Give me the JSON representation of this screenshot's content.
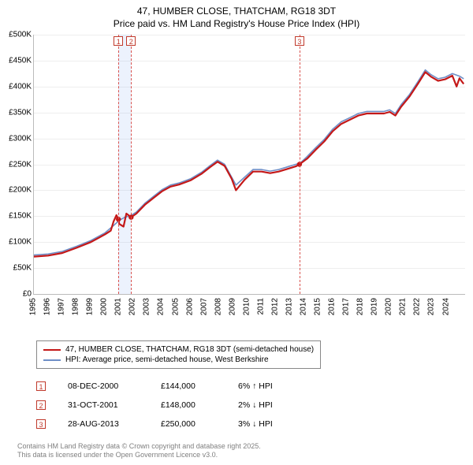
{
  "title": {
    "line1": "47, HUMBER CLOSE, THATCHAM, RG18 3DT",
    "line2": "Price paid vs. HM Land Registry's House Price Index (HPI)"
  },
  "chart": {
    "type": "line",
    "background_color": "#ffffff",
    "grid_color": "#eeeeee",
    "axis_color": "#bbbbbb",
    "font_size_ticks": 10,
    "x": {
      "min": 1995.0,
      "max": 2025.3,
      "ticks": [
        1995,
        1996,
        1997,
        1998,
        1999,
        2000,
        2001,
        2002,
        2003,
        2004,
        2005,
        2006,
        2007,
        2008,
        2009,
        2010,
        2011,
        2012,
        2013,
        2014,
        2015,
        2016,
        2017,
        2018,
        2019,
        2020,
        2021,
        2022,
        2023,
        2024
      ]
    },
    "y": {
      "min": 0,
      "max": 500000,
      "ticks": [
        0,
        50000,
        100000,
        150000,
        200000,
        250000,
        300000,
        350000,
        400000,
        450000,
        500000
      ],
      "tick_labels": [
        "£0",
        "£50K",
        "£100K",
        "£150K",
        "£200K",
        "£250K",
        "£300K",
        "£350K",
        "£400K",
        "£450K",
        "£500K"
      ]
    },
    "series": [
      {
        "name": "hpi",
        "label": "HPI: Average price, semi-detached house, West Berkshire",
        "color": "#6f8fc7",
        "width": 1.6,
        "points": [
          [
            1995.0,
            75000
          ],
          [
            1996.0,
            77000
          ],
          [
            1997.0,
            82000
          ],
          [
            1998.0,
            92000
          ],
          [
            1999.0,
            103000
          ],
          [
            2000.0,
            118000
          ],
          [
            2000.6,
            132000
          ],
          [
            2001.0,
            142000
          ],
          [
            2001.4,
            148000
          ],
          [
            2001.8,
            151000
          ],
          [
            2002.2,
            158000
          ],
          [
            2002.8,
            175000
          ],
          [
            2003.4,
            188000
          ],
          [
            2004.0,
            201000
          ],
          [
            2004.6,
            210000
          ],
          [
            2005.2,
            214000
          ],
          [
            2006.0,
            222000
          ],
          [
            2006.8,
            235000
          ],
          [
            2007.4,
            248000
          ],
          [
            2007.9,
            258000
          ],
          [
            2008.4,
            250000
          ],
          [
            2008.9,
            225000
          ],
          [
            2009.2,
            210000
          ],
          [
            2009.8,
            225000
          ],
          [
            2010.4,
            240000
          ],
          [
            2011.0,
            240000
          ],
          [
            2011.6,
            237000
          ],
          [
            2012.2,
            240000
          ],
          [
            2012.8,
            245000
          ],
          [
            2013.4,
            250000
          ],
          [
            2013.7,
            252000
          ],
          [
            2014.2,
            265000
          ],
          [
            2014.8,
            282000
          ],
          [
            2015.4,
            298000
          ],
          [
            2016.0,
            318000
          ],
          [
            2016.6,
            332000
          ],
          [
            2017.2,
            340000
          ],
          [
            2017.8,
            348000
          ],
          [
            2018.4,
            352000
          ],
          [
            2019.0,
            352000
          ],
          [
            2019.6,
            352000
          ],
          [
            2020.0,
            355000
          ],
          [
            2020.4,
            348000
          ],
          [
            2020.8,
            365000
          ],
          [
            2021.4,
            385000
          ],
          [
            2022.0,
            410000
          ],
          [
            2022.5,
            432000
          ],
          [
            2022.9,
            423000
          ],
          [
            2023.4,
            415000
          ],
          [
            2023.9,
            418000
          ],
          [
            2024.4,
            425000
          ],
          [
            2024.9,
            420000
          ],
          [
            2025.2,
            415000
          ]
        ]
      },
      {
        "name": "subject",
        "label": "47, HUMBER CLOSE, THATCHAM, RG18 3DT (semi-detached house)",
        "color": "#c41818",
        "width": 2.2,
        "points": [
          [
            1995.0,
            72000
          ],
          [
            1996.0,
            74000
          ],
          [
            1997.0,
            79000
          ],
          [
            1998.0,
            89000
          ],
          [
            1999.0,
            100000
          ],
          [
            2000.0,
            115000
          ],
          [
            2000.4,
            122000
          ],
          [
            2000.6,
            140000
          ],
          [
            2000.8,
            152000
          ],
          [
            2000.94,
            144000
          ],
          [
            2001.0,
            135000
          ],
          [
            2001.3,
            130000
          ],
          [
            2001.5,
            155000
          ],
          [
            2001.83,
            148000
          ],
          [
            2002.2,
            155000
          ],
          [
            2002.8,
            172000
          ],
          [
            2003.4,
            185000
          ],
          [
            2004.0,
            198000
          ],
          [
            2004.6,
            207000
          ],
          [
            2005.2,
            211000
          ],
          [
            2006.0,
            219000
          ],
          [
            2006.8,
            232000
          ],
          [
            2007.4,
            245000
          ],
          [
            2007.9,
            255000
          ],
          [
            2008.4,
            247000
          ],
          [
            2008.9,
            222000
          ],
          [
            2009.2,
            200000
          ],
          [
            2009.8,
            220000
          ],
          [
            2010.4,
            236000
          ],
          [
            2011.0,
            236000
          ],
          [
            2011.6,
            233000
          ],
          [
            2012.2,
            236000
          ],
          [
            2012.8,
            241000
          ],
          [
            2013.4,
            246000
          ],
          [
            2013.66,
            250000
          ],
          [
            2014.2,
            261000
          ],
          [
            2014.8,
            278000
          ],
          [
            2015.4,
            294000
          ],
          [
            2016.0,
            314000
          ],
          [
            2016.6,
            328000
          ],
          [
            2017.2,
            336000
          ],
          [
            2017.8,
            344000
          ],
          [
            2018.4,
            348000
          ],
          [
            2019.0,
            348000
          ],
          [
            2019.6,
            348000
          ],
          [
            2020.0,
            351000
          ],
          [
            2020.4,
            344000
          ],
          [
            2020.8,
            361000
          ],
          [
            2021.4,
            381000
          ],
          [
            2022.0,
            406000
          ],
          [
            2022.5,
            428000
          ],
          [
            2022.9,
            419000
          ],
          [
            2023.4,
            411000
          ],
          [
            2023.9,
            414000
          ],
          [
            2024.4,
            421000
          ],
          [
            2024.7,
            400000
          ],
          [
            2024.9,
            416000
          ],
          [
            2025.2,
            405000
          ]
        ]
      }
    ],
    "sale_markers": {
      "color": "#c41818",
      "radius": 3.2,
      "points": [
        [
          2000.94,
          144000
        ],
        [
          2001.83,
          148000
        ],
        [
          2013.66,
          250000
        ]
      ]
    },
    "events": [
      {
        "n": "1",
        "x": 2000.94,
        "shade_to": 2001.83
      },
      {
        "n": "2",
        "x": 2001.83
      },
      {
        "n": "3",
        "x": 2013.66
      }
    ],
    "event_line_color": "#d9534f",
    "event_shade_color": "rgba(100,149,237,0.12)"
  },
  "legend": {
    "rows": [
      {
        "color": "#c41818",
        "label": "47, HUMBER CLOSE, THATCHAM, RG18 3DT (semi-detached house)"
      },
      {
        "color": "#6f8fc7",
        "label": "HPI: Average price, semi-detached house, West Berkshire"
      }
    ]
  },
  "events_table": [
    {
      "n": "1",
      "date": "08-DEC-2000",
      "price": "£144,000",
      "delta": "6% ↑ HPI"
    },
    {
      "n": "2",
      "date": "31-OCT-2001",
      "price": "£148,000",
      "delta": "2% ↓ HPI"
    },
    {
      "n": "3",
      "date": "28-AUG-2013",
      "price": "£250,000",
      "delta": "3% ↓ HPI"
    }
  ],
  "footer": {
    "line1": "Contains HM Land Registry data © Crown copyright and database right 2025.",
    "line2": "This data is licensed under the Open Government Licence v3.0."
  }
}
